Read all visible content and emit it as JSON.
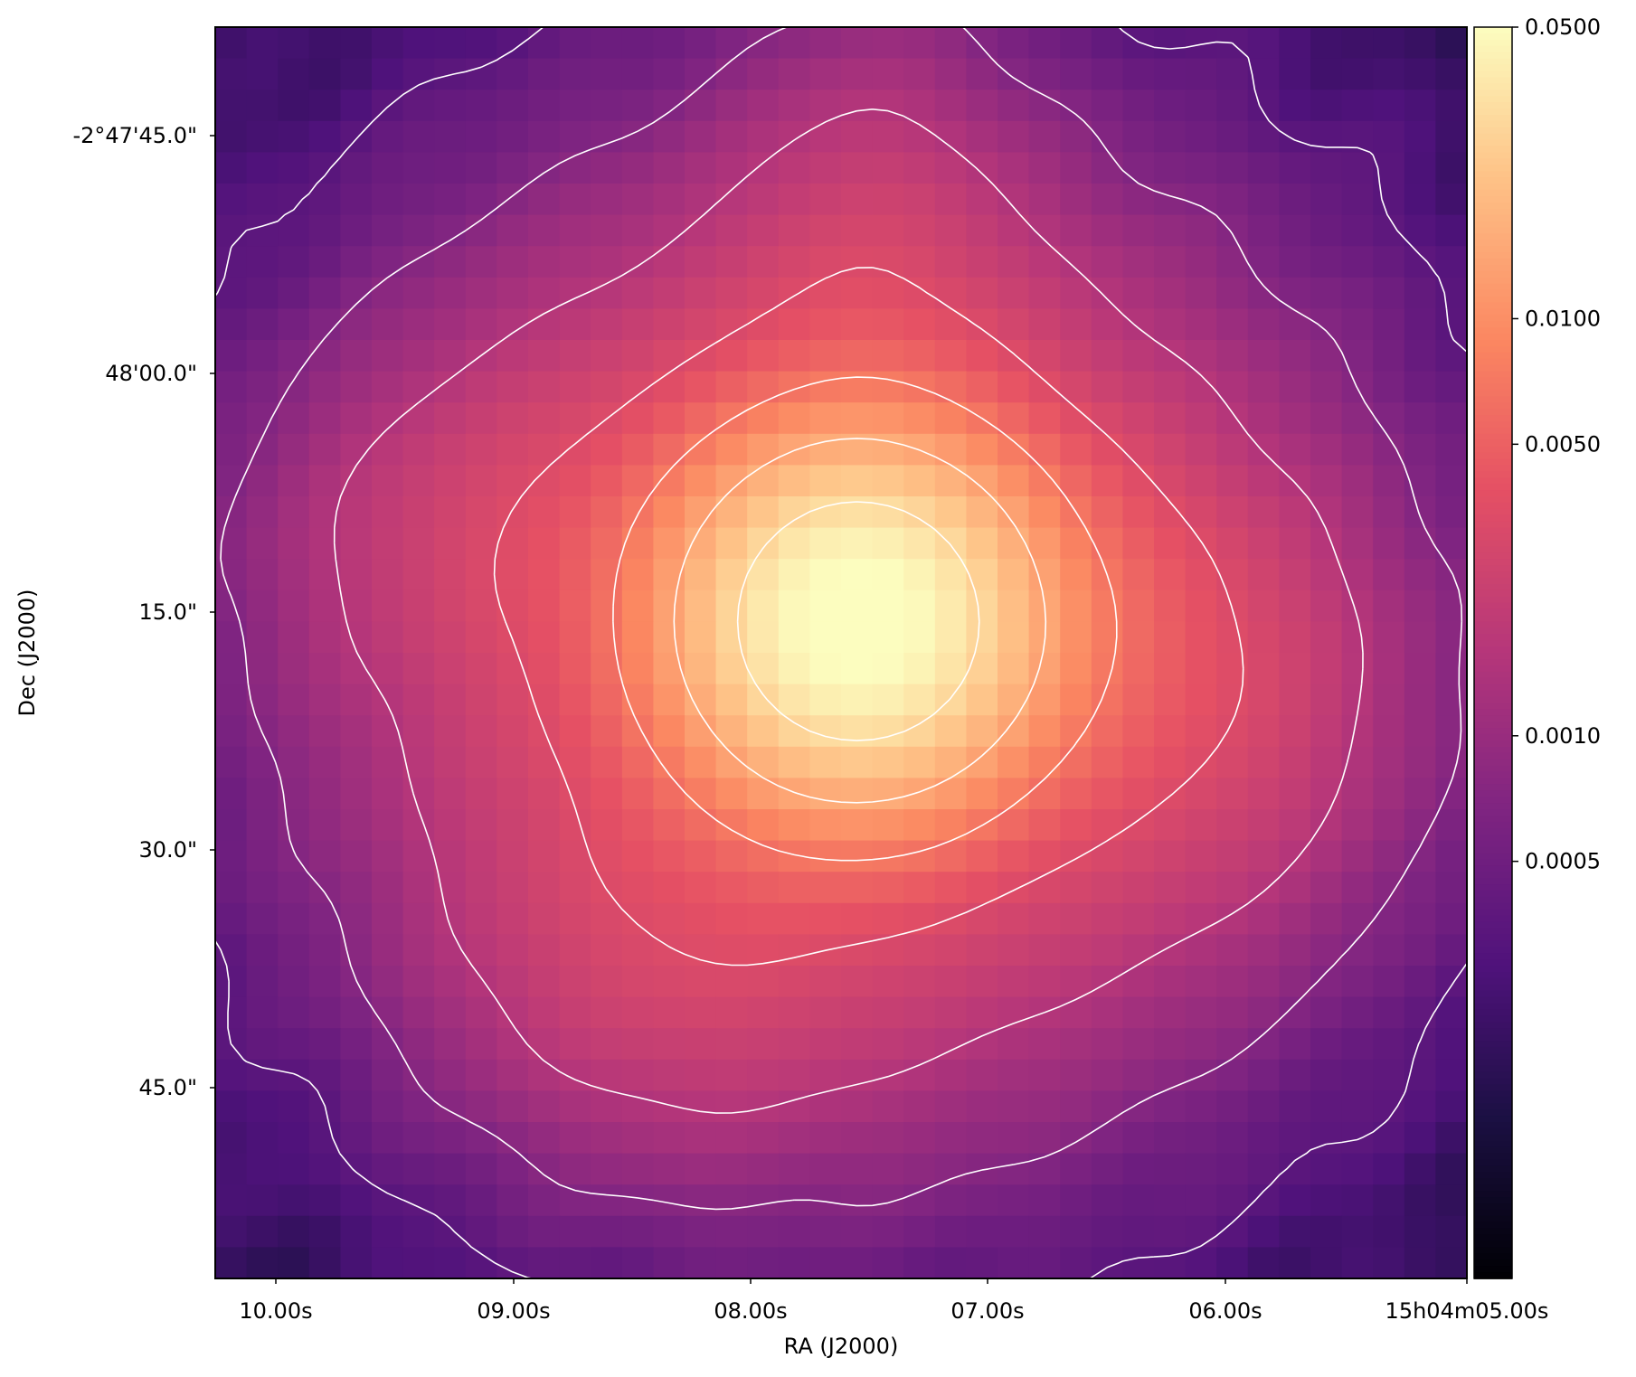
{
  "chart_data": {
    "type": "heatmap",
    "title": "",
    "xlabel": "RA (J2000)",
    "ylabel": "Dec (J2000)",
    "x_ticks": [
      "10.00s",
      "09.00s",
      "08.00s",
      "07.00s",
      "06.00s",
      "15h04m05.00s"
    ],
    "y_ticks": [
      "-2°47'45.0\"",
      "48'00.0\"",
      "15.0\"",
      "30.0\"",
      "45.0\""
    ],
    "colormap": "magma",
    "color_scale": "log",
    "colorbar": {
      "range": [
        5e-05,
        0.05
      ],
      "ticks": [
        {
          "value": 0.05,
          "label": "0.0500"
        },
        {
          "value": 0.01,
          "label": "0.0100"
        },
        {
          "value": 0.005,
          "label": "0.0050"
        },
        {
          "value": 0.001,
          "label": "0.0010"
        },
        {
          "value": 0.0005,
          "label": "0.0005"
        }
      ]
    },
    "contour_color": "#ffffff",
    "contour_levels_count": 7,
    "source": {
      "peak_value": 0.05,
      "background_value": 0.00012
    },
    "grid": false
  }
}
